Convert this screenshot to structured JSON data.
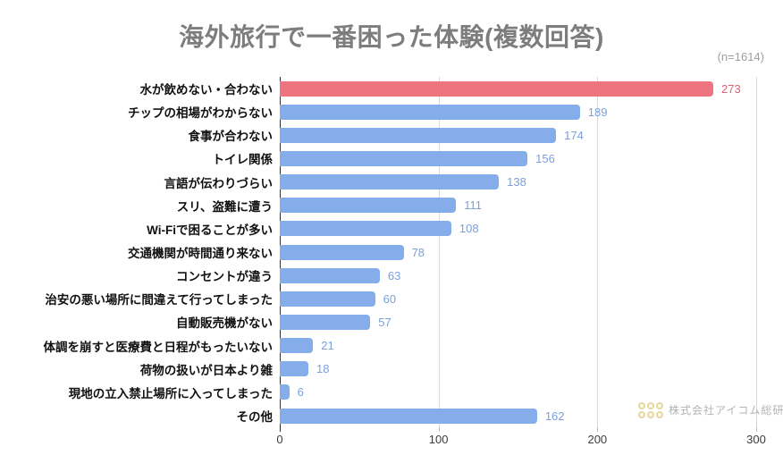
{
  "header": {
    "title": "海外旅行で一番困った体験(複数回答)",
    "sample_size_label": "(n=1614)"
  },
  "chart_data": {
    "type": "bar",
    "orientation": "horizontal",
    "title": "海外旅行で一番困った体験(複数回答)",
    "sample_size": "(n=1614)",
    "categories": [
      "水が飲めない・合わない",
      "チップの相場がわからない",
      "食事が合わない",
      "トイレ関係",
      "言語が伝わりづらい",
      "スリ、盗難に遭う",
      "Wi-Fiで困ることが多い",
      "交通機関が時間通り来ない",
      "コンセントが違う",
      "治安の悪い場所に間違えて行ってしまった",
      "自動販売機がない",
      "体調を崩すと医療費と日程がもったいない",
      "荷物の扱いが日本より雑",
      "現地の立入禁止場所に入ってしまった",
      "その他"
    ],
    "values": [
      273,
      189,
      174,
      156,
      138,
      111,
      108,
      78,
      63,
      60,
      57,
      21,
      18,
      6,
      162
    ],
    "highlight_index": 0,
    "bar_color_highlight": "#ee7480",
    "bar_color_default": "#85ade9",
    "value_color_highlight": "#dd5f72",
    "value_color_default": "#7aa0dc",
    "xlabel": "",
    "ylabel": "",
    "xlim": [
      0,
      300
    ],
    "x_ticks": [
      0,
      100,
      200,
      300
    ],
    "grid": true,
    "legend": "none"
  },
  "watermark": {
    "text": "株式会社アイコム総研",
    "logo": "dot-grid-logo",
    "logo_color": "#e6d79e",
    "text_color": "#b3b3b3"
  }
}
